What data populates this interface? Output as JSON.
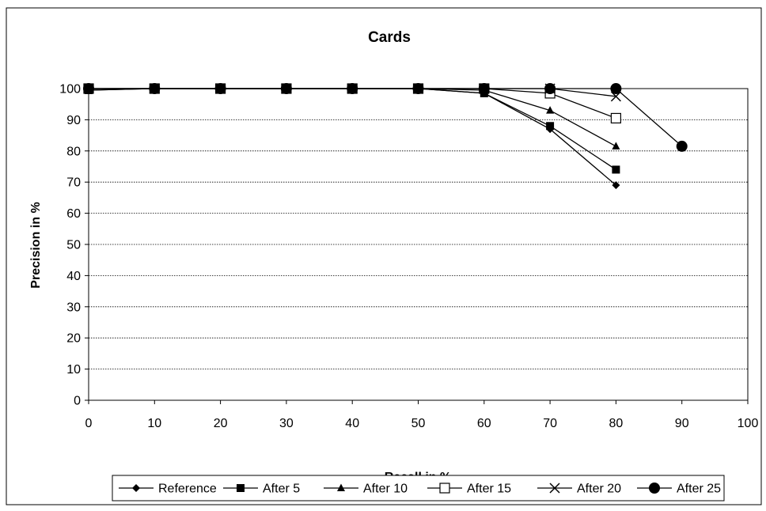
{
  "chart_data": {
    "type": "line",
    "title": "Cards",
    "xlabel": "Recall in %",
    "ylabel": "Precision in %",
    "xlim": [
      0,
      100
    ],
    "ylim": [
      0,
      100
    ],
    "xticks": [
      "0",
      "10",
      "20",
      "30",
      "40",
      "50",
      "60",
      "70",
      "80",
      "90",
      "100"
    ],
    "yticks": [
      "0",
      "10",
      "20",
      "30",
      "40",
      "50",
      "60",
      "70",
      "80",
      "90",
      "100"
    ],
    "grid": "horizontal dotted",
    "legend_position": "bottom",
    "series": [
      {
        "name": "Reference",
        "marker": "diamond",
        "x": [
          0,
          10,
          20,
          30,
          40,
          50,
          60,
          70,
          80
        ],
        "y": [
          99.5,
          100,
          100,
          100,
          100,
          100,
          98.5,
          87,
          69
        ]
      },
      {
        "name": "After 5",
        "marker": "square",
        "x": [
          0,
          10,
          20,
          30,
          40,
          50,
          60,
          70,
          80
        ],
        "y": [
          99.5,
          100,
          100,
          100,
          100,
          100,
          98.5,
          88,
          74
        ]
      },
      {
        "name": "After 10",
        "marker": "triangle",
        "x": [
          0,
          10,
          20,
          30,
          40,
          50,
          60,
          70,
          80
        ],
        "y": [
          100,
          100,
          100,
          100,
          100,
          100,
          99.5,
          93,
          81.5
        ]
      },
      {
        "name": "After 15",
        "marker": "square-open",
        "x": [
          0,
          10,
          20,
          30,
          40,
          50,
          60,
          70,
          80
        ],
        "y": [
          100,
          100,
          100,
          100,
          100,
          100,
          100,
          98.5,
          90.5
        ]
      },
      {
        "name": "After 20",
        "marker": "x",
        "x": [
          0,
          10,
          20,
          30,
          40,
          50,
          60,
          70,
          80
        ],
        "y": [
          100,
          100,
          100,
          100,
          100,
          100,
          100,
          100,
          97.5
        ]
      },
      {
        "name": "After 25",
        "marker": "circle",
        "x": [
          0,
          10,
          20,
          30,
          40,
          50,
          60,
          70,
          80,
          90
        ],
        "y": [
          100,
          100,
          100,
          100,
          100,
          100,
          100,
          100,
          100,
          81.5
        ]
      }
    ]
  }
}
